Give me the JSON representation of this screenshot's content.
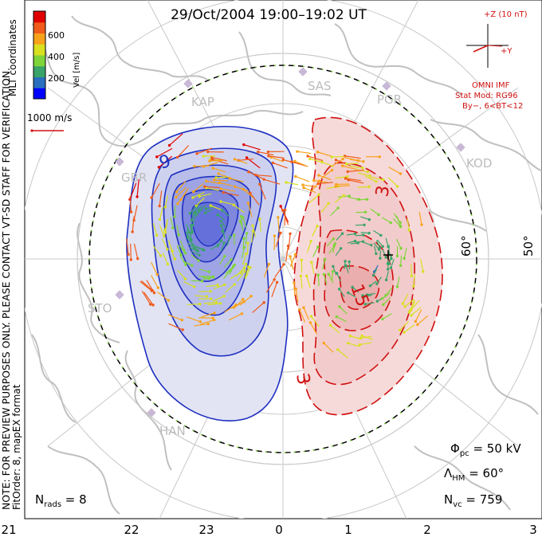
{
  "title": "29/Oct/2004 19:00–19:02 UT",
  "colorbar": {
    "label": "Vel [m/s]",
    "ticks": [
      "600",
      "400",
      "200"
    ],
    "colors": [
      "#0000ff",
      "#2a6fbf",
      "#3aa36a",
      "#7fd43a",
      "#d8e020",
      "#f7a21a",
      "#f05a1a",
      "#e00000"
    ]
  },
  "side_text": {
    "coords": "MLT coordinates",
    "note": "NOTE: FOR PREVIEW PURPOSES ONLY. PLEASE CONTACT VT-SD STAFF FOR VERIFICATION.",
    "fit": "FitOrder: 8, mapEX format"
  },
  "scale_vector": {
    "label": "1000 m/s"
  },
  "imf": {
    "z_label": "+Z (10 nT)",
    "y_label": "+Y",
    "source": "OMNI IMF",
    "model": "Stat Mod: RG96",
    "condition": "By−, 6<BT<12"
  },
  "stations": [
    "KAP",
    "SAS",
    "PGR",
    "KOD",
    "GBR",
    "STO",
    "HAN"
  ],
  "latitude_labels": [
    "60°",
    "50°"
  ],
  "contour_labels": [
    "9",
    "15",
    "3",
    "3"
  ],
  "stats": {
    "phi_pc": "50 kV",
    "lambda_hm": "60°",
    "n_vc": "759",
    "n_rads": "8"
  },
  "mlt_labels": [
    "21",
    "22",
    "23",
    "0",
    "1",
    "2",
    "3"
  ],
  "colors": {
    "negative": "#1e2fc0",
    "positive": "#d01010",
    "grid": "#c8c8c8",
    "coast": "#c0c0c0"
  }
}
